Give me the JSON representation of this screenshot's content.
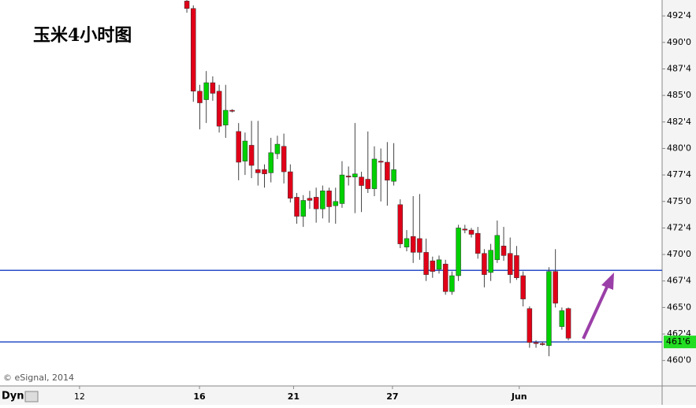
{
  "chart_data": {
    "type": "candlestick",
    "title": "玉米4小时图",
    "source": "© eSignal, 2014",
    "interval": "Dyn",
    "x": [
      0,
      1,
      2,
      3,
      4,
      5,
      6,
      7,
      8,
      9,
      10,
      11,
      12,
      13,
      14,
      15,
      16,
      17,
      18,
      19,
      20,
      21,
      22,
      23,
      24,
      25,
      26,
      27,
      28,
      29,
      30,
      31,
      32,
      33,
      34,
      35,
      36,
      37,
      38,
      39,
      40,
      41,
      42,
      43,
      44,
      45,
      46,
      47,
      48,
      49,
      50,
      51,
      52,
      53,
      54,
      55,
      56,
      57,
      58,
      59
    ],
    "open": [
      493.9,
      493.2,
      485.4,
      484.6,
      486.2,
      485.4,
      482.2,
      483.6,
      481.6,
      478.8,
      480.3,
      478,
      478,
      477.7,
      479.5,
      480.2,
      477.8,
      475.4,
      473.6,
      475.3,
      475.4,
      474.3,
      476,
      474.6,
      474.8,
      477.4,
      477.3,
      477.3,
      477.1,
      476.2,
      478.8,
      478.7,
      476.9,
      474.7,
      470.7,
      471.7,
      471.5,
      470.2,
      469.4,
      468.6,
      469.1,
      466.5,
      468,
      472.4,
      472.3,
      472,
      470.1,
      468.3,
      469.5,
      470.8,
      470.1,
      469.9,
      468,
      464.9,
      461.7,
      461.6,
      461.4,
      468.4,
      463.2,
      464.9
    ],
    "high": [
      494,
      493.5,
      486,
      487.3,
      486.8,
      486,
      486,
      483.7,
      482.4,
      481.5,
      482.6,
      482.6,
      478.5,
      481,
      481.2,
      481.4,
      478.5,
      475.8,
      475.6,
      476,
      476.3,
      476.5,
      476.3,
      476.3,
      478.8,
      478.3,
      482.4,
      477.8,
      481.6,
      480.2,
      480,
      480.6,
      480.5,
      475.2,
      472.3,
      475.5,
      475.7,
      471.5,
      469.8,
      469.9,
      469.5,
      468.4,
      472.8,
      472.8,
      472.5,
      472.6,
      470.5,
      471,
      473.2,
      472.6,
      471.6,
      470.8,
      468.4,
      465.1,
      461.9,
      461.8,
      468.8,
      470.5,
      465,
      465
    ],
    "low": [
      492.8,
      484.4,
      481.8,
      482.4,
      484.5,
      481.5,
      481,
      483.4,
      477,
      477.5,
      477.2,
      476.5,
      476.3,
      476.8,
      479,
      476.7,
      474.9,
      472.9,
      472.6,
      474.3,
      473,
      473.4,
      473,
      472.9,
      474.4,
      476.5,
      473.9,
      474,
      475.8,
      475.5,
      475,
      474.6,
      476.5,
      470.6,
      470.3,
      469.2,
      469.5,
      467.5,
      467.8,
      468.2,
      466.2,
      466.2,
      467.5,
      472,
      471.6,
      469.6,
      466.9,
      467.5,
      469.2,
      469.4,
      467.3,
      467.6,
      465.1,
      461.2,
      461.2,
      461.4,
      460.4,
      465,
      462.9,
      461.9
    ],
    "close": [
      493.2,
      485.4,
      484.3,
      486.2,
      485.2,
      482.1,
      483.6,
      483.5,
      478.7,
      480.7,
      478.4,
      477.7,
      477.6,
      479.6,
      480.4,
      477.8,
      475.3,
      473.6,
      475.1,
      475.1,
      474.3,
      476,
      474.5,
      475,
      477.5,
      477.3,
      477.6,
      476.5,
      476.2,
      479,
      478.7,
      477,
      478,
      471,
      471.5,
      470.2,
      470.2,
      468.1,
      468.4,
      469.5,
      466.5,
      468,
      472.5,
      472.3,
      471.9,
      470.1,
      468.1,
      470.4,
      471.8,
      469.9,
      468.1,
      467.8,
      465.8,
      461.7,
      461.6,
      461.5,
      468.4,
      465.4,
      464.7,
      462.1
    ],
    "up_color": "#00d000",
    "down_color": "#e00018",
    "hlines": [
      468.5,
      461.75
    ],
    "hline_color": "#2a4fc8",
    "last_price": {
      "value": 461.75,
      "label": "461'6"
    },
    "ylim": [
      457.6,
      494
    ],
    "yticks": [
      {
        "value": 460,
        "label": "460'0"
      },
      {
        "value": 462.5,
        "label": "462'4"
      },
      {
        "value": 465,
        "label": "465'0"
      },
      {
        "value": 467.5,
        "label": "467'4"
      },
      {
        "value": 470,
        "label": "470'0"
      },
      {
        "value": 472.5,
        "label": "472'4"
      },
      {
        "value": 475,
        "label": "475'0"
      },
      {
        "value": 477.5,
        "label": "477'4"
      },
      {
        "value": 480,
        "label": "480'0"
      },
      {
        "value": 482.5,
        "label": "482'4"
      },
      {
        "value": 485,
        "label": "485'0"
      },
      {
        "value": 487.5,
        "label": "487'4"
      },
      {
        "value": 490,
        "label": "490'0"
      },
      {
        "value": 492.5,
        "label": "492'4"
      }
    ],
    "xlim": [
      -28.9,
      73.5
    ],
    "xticks": [
      {
        "value": -16.6,
        "label": "12"
      },
      {
        "value": 1.95,
        "label": "16"
      },
      {
        "value": 16.5,
        "label": "21"
      },
      {
        "value": 31.8,
        "label": "27"
      },
      {
        "value": 51.4,
        "label": "Jun"
      }
    ]
  }
}
